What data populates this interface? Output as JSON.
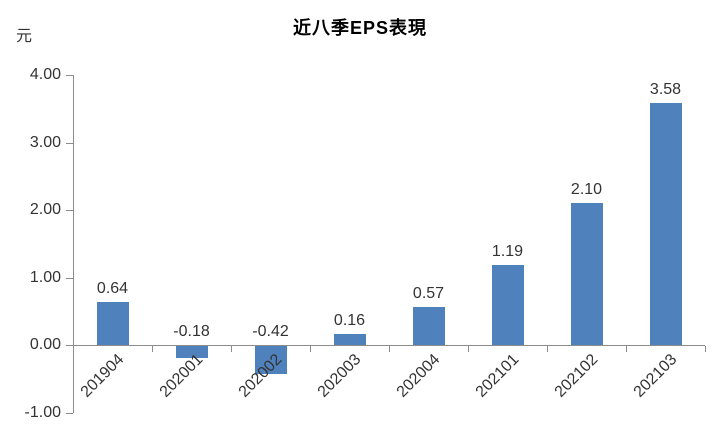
{
  "chart_data": {
    "type": "bar",
    "title": "近八季EPS表現",
    "ylabel": "元",
    "xlabel": "",
    "categories": [
      "201904",
      "202001",
      "202002",
      "202003",
      "202004",
      "202101",
      "202102",
      "202103"
    ],
    "values": [
      0.64,
      -0.18,
      -0.42,
      0.16,
      0.57,
      1.19,
      2.1,
      3.58
    ],
    "data_labels": [
      "0.64",
      "-0.18",
      "-0.42",
      "0.16",
      "0.57",
      "1.19",
      "2.10",
      "3.58"
    ],
    "y_tick_labels": [
      "4.00",
      "3.00",
      "2.00",
      "1.00",
      "0.00",
      "-1.00"
    ],
    "y_tick_values": [
      4,
      3,
      2,
      1,
      0,
      -1
    ],
    "ylim": [
      -1,
      4
    ],
    "grid": false,
    "legend": "none",
    "bar_color": "#4F81BD",
    "axis_color": "#8C8C8C",
    "text_color": "#333333",
    "title_color": "#000000",
    "background": "#FFFFFF"
  }
}
